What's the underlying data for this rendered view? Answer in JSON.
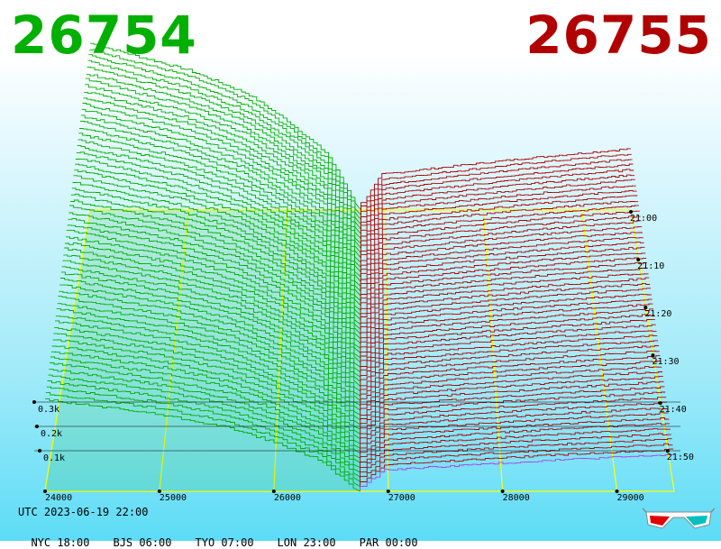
{
  "header": {
    "bid_price": "26754",
    "ask_price": "26755",
    "bid_color": "#00b000",
    "ask_color": "#b00000"
  },
  "chart_data": {
    "type": "area",
    "chart_kind": "3d order book depth (stacked time slices)",
    "x_ticks": [
      24000,
      25000,
      26000,
      27000,
      28000,
      29000
    ],
    "x_tick_labels": [
      "24000",
      "25000",
      "26000",
      "27000",
      "28000",
      "29000"
    ],
    "z_tick_labels": [
      "0.1k",
      "0.2k",
      "0.3k"
    ],
    "z_ticks": [
      100,
      200,
      300
    ],
    "time_tick_labels": [
      "21:00",
      "21:10",
      "21:20",
      "21:30",
      "21:40",
      "21:50"
    ],
    "mid_price": 26754.5,
    "bid_color": "#00b000",
    "ask_color": "#b00000",
    "grid_color": "#ffff00",
    "slices": 60,
    "bid_depth_profile": [
      {
        "price": 24000,
        "depth": 560
      },
      {
        "price": 25000,
        "depth": 470
      },
      {
        "price": 25600,
        "depth": 390
      },
      {
        "price": 26000,
        "depth": 300
      },
      {
        "price": 26400,
        "depth": 190
      },
      {
        "price": 26700,
        "depth": 20
      }
    ],
    "ask_depth_profile": [
      {
        "price": 26800,
        "depth": 20
      },
      {
        "price": 27000,
        "depth": 120
      },
      {
        "price": 27800,
        "depth": 150
      },
      {
        "price": 28500,
        "depth": 175
      },
      {
        "price": 29500,
        "depth": 205
      }
    ]
  },
  "footer": {
    "utc": "UTC 2023-06-19 22:00",
    "cities": [
      "NYC 18:00",
      "BJS 06:00",
      "TYO 07:00",
      "LON 23:00",
      "PAR 00:00"
    ]
  },
  "icons": {
    "glasses": "3d-glasses-icon"
  }
}
